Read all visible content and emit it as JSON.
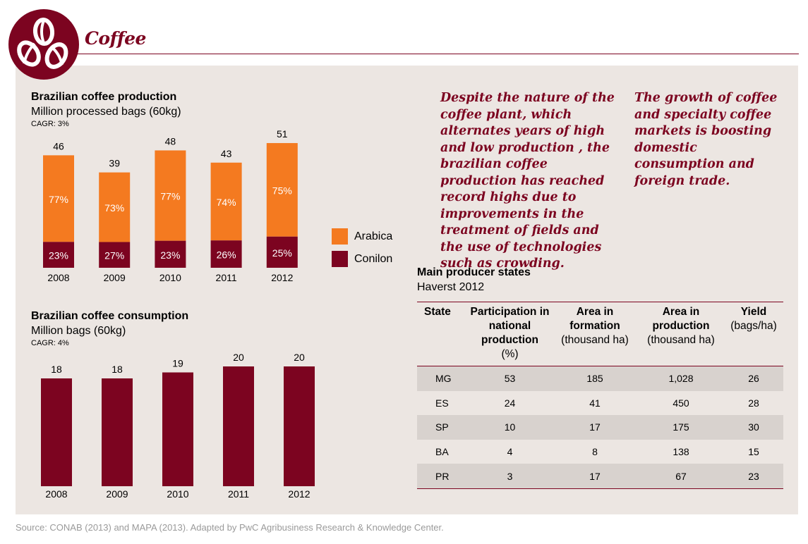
{
  "header": {
    "title": "Coffee",
    "icon": "coffee-beans-icon",
    "accent_color": "#7c0420"
  },
  "chart_data": [
    {
      "type": "bar",
      "stacked": true,
      "title": "Brazilian coffee production",
      "subtitle": "Million processed bags (60kg)",
      "note": "CAGR: 3%",
      "categories": [
        "2008",
        "2009",
        "2010",
        "2011",
        "2012"
      ],
      "totals": [
        46,
        39,
        48,
        43,
        51
      ],
      "total_labels": [
        "46",
        "39",
        "48",
        "43",
        "51"
      ],
      "series": [
        {
          "name": "Conilon",
          "color": "#7c0420",
          "share_percent": [
            23,
            27,
            23,
            26,
            25
          ],
          "labels": [
            "23%",
            "27%",
            "23%",
            "26%",
            "25%"
          ]
        },
        {
          "name": "Arabica",
          "color": "#f47a20",
          "share_percent": [
            77,
            73,
            77,
            74,
            75
          ],
          "labels": [
            "77%",
            "73%",
            "77%",
            "74%",
            "75%"
          ]
        }
      ],
      "legend": {
        "placement": "right",
        "items": [
          "Arabica",
          "Conilon"
        ]
      },
      "ylim": [
        0,
        55
      ],
      "grid": false
    },
    {
      "type": "bar",
      "title": "Brazilian coffee consumption",
      "subtitle": "Million bags (60kg)",
      "note": "CAGR: 4%",
      "categories": [
        "2008",
        "2009",
        "2010",
        "2011",
        "2012"
      ],
      "values": [
        18,
        18,
        19,
        20,
        20
      ],
      "value_labels": [
        "18",
        "18",
        "19",
        "20",
        "20"
      ],
      "color": "#7c0420",
      "ylim": [
        0,
        22
      ],
      "grid": false
    },
    {
      "type": "table",
      "title": "Main producer states",
      "subtitle": "Haverst 2012",
      "columns": [
        {
          "title": "State",
          "unit": ""
        },
        {
          "title": "Participation in national production",
          "unit": "(%)"
        },
        {
          "title": "Area in formation",
          "unit": "(thousand ha)"
        },
        {
          "title": "Area in production",
          "unit": "(thousand ha)"
        },
        {
          "title": "Yield",
          "unit": "(bags/ha)"
        }
      ],
      "rows": [
        [
          "MG",
          "53",
          "185",
          "1,028",
          "26"
        ],
        [
          "ES",
          "24",
          "41",
          "450",
          "28"
        ],
        [
          "SP",
          "10",
          "17",
          "175",
          "30"
        ],
        [
          "BA",
          "4",
          "8",
          "138",
          "15"
        ],
        [
          "PR",
          "3",
          "17",
          "67",
          "23"
        ]
      ]
    }
  ],
  "quotes": [
    "Despite the nature of the coffee plant, which alternates years of high and low production , the brazilian coffee production has reached record highs due to improvements in the treatment of fields and the use of technologies such as crowding.",
    "The growth of coffee and specialty coffee markets is boosting domestic consumption and foreign trade."
  ],
  "source": "Source: CONAB (2013) and MAPA (2013). Adapted by PwC Agribusiness Research & Knowledge Center."
}
